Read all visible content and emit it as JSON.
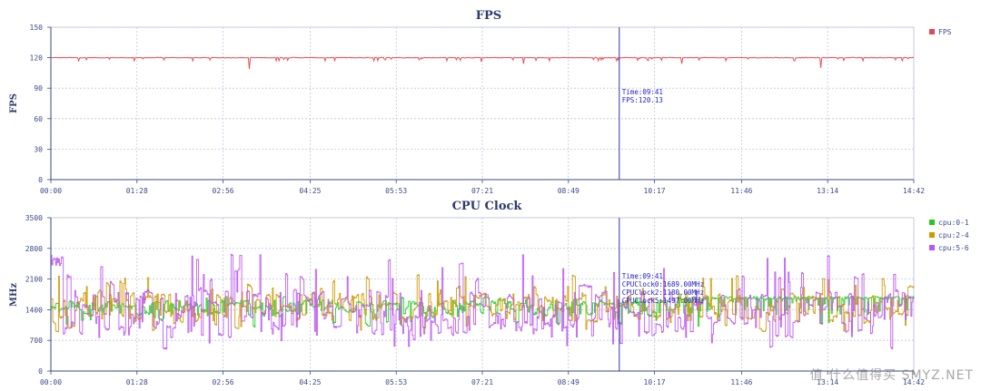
{
  "watermark": "值 什么值得买 SMYZ.NET",
  "chart_data": [
    {
      "type": "line",
      "title": "FPS",
      "ylabel": "FPS",
      "xlabel": "",
      "x_ticks": [
        "00:00",
        "01:28",
        "02:56",
        "04:25",
        "05:53",
        "07:21",
        "08:49",
        "10:17",
        "11:46",
        "13:14",
        "14:42"
      ],
      "x_range_seconds": [
        0,
        882
      ],
      "ylim": [
        0,
        150
      ],
      "y_ticks": [
        0,
        30,
        60,
        90,
        120,
        150
      ],
      "grid": true,
      "legend_position": "top-right",
      "series": [
        {
          "name": "FPS",
          "color": "#e8464e",
          "baseline": 120,
          "dips": [
            [
              28,
              117
            ],
            [
              85,
              117
            ],
            [
              145,
              117
            ],
            [
              203,
              109
            ],
            [
              230,
              117
            ],
            [
              280,
              117
            ],
            [
              330,
              117
            ],
            [
              405,
              117
            ],
            [
              440,
              116
            ],
            [
              483,
              114
            ],
            [
              510,
              117
            ],
            [
              560,
              117
            ],
            [
              578,
              117
            ],
            [
              645,
              114
            ],
            [
              690,
              117
            ],
            [
              760,
              117
            ],
            [
              787,
              110
            ],
            [
              830,
              117
            ],
            [
              870,
              117
            ]
          ]
        }
      ],
      "cursor": {
        "time": "09:41",
        "lines": [
          "Time:09:41",
          "FPS:120.13"
        ]
      }
    },
    {
      "type": "line",
      "title": "CPU Clock",
      "ylabel": "MHz",
      "xlabel": "",
      "x_ticks": [
        "00:00",
        "01:28",
        "02:56",
        "04:25",
        "05:53",
        "07:21",
        "08:49",
        "10:17",
        "11:46",
        "13:14",
        "14:42"
      ],
      "x_range_seconds": [
        0,
        882
      ],
      "ylim": [
        0,
        3500
      ],
      "y_ticks": [
        0,
        700,
        1400,
        2100,
        2800,
        3500
      ],
      "grid": true,
      "legend_position": "top-right",
      "series": [
        {
          "name": "cpu:0-1",
          "color": "#22cc22",
          "range": [
            1000,
            1700
          ],
          "center": 1450
        },
        {
          "name": "cpu:2-4",
          "color": "#cc9900",
          "range": [
            900,
            2200
          ],
          "center": 1450
        },
        {
          "name": "cpu:5-6",
          "color": "#bb55ee",
          "range": [
            500,
            2700
          ],
          "center": 1300
        }
      ],
      "cursor": {
        "time": "09:41",
        "lines": [
          "Time:09:41",
          "CPUClock0:1689.00MHz",
          "CPUClock2:1180.00MHz",
          "CPUClock5:1497.00MHz"
        ]
      }
    }
  ]
}
